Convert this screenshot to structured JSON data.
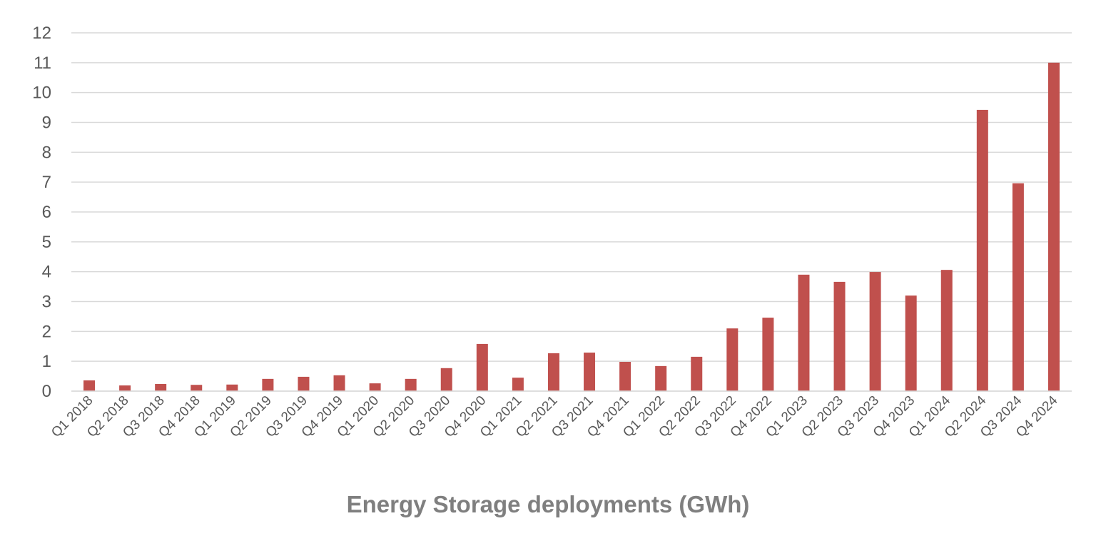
{
  "chart_data": {
    "type": "bar",
    "title": "Energy Storage deployments (GWh)",
    "xlabel": "",
    "ylabel": "",
    "ylim": [
      0,
      12
    ],
    "yticks": [
      "0",
      "1",
      "2",
      "3",
      "4",
      "5",
      "6",
      "7",
      "8",
      "9",
      "10",
      "11",
      "12"
    ],
    "grid": true,
    "bar_color": "#c0504d",
    "categories": [
      "Q1 2018",
      "Q2 2018",
      "Q3 2018",
      "Q4 2018",
      "Q1 2019",
      "Q2 2019",
      "Q3 2019",
      "Q4 2019",
      "Q1 2020",
      "Q2 2020",
      "Q3 2020",
      "Q4 2020",
      "Q1 2021",
      "Q2 2021",
      "Q3 2021",
      "Q4 2021",
      "Q1 2022",
      "Q2 2022",
      "Q3 2022",
      "Q4 2022",
      "Q1 2023",
      "Q2 2023",
      "Q3 2023",
      "Q4 2023",
      "Q1 2024",
      "Q2 2024",
      "Q3 2024",
      "Q4 2024"
    ],
    "values": [
      0.36,
      0.19,
      0.24,
      0.21,
      0.22,
      0.41,
      0.48,
      0.53,
      0.26,
      0.41,
      0.77,
      1.58,
      0.45,
      1.27,
      1.29,
      0.98,
      0.84,
      1.15,
      2.1,
      2.46,
      3.9,
      3.66,
      3.99,
      3.2,
      4.06,
      9.42,
      6.96,
      11.0
    ]
  }
}
